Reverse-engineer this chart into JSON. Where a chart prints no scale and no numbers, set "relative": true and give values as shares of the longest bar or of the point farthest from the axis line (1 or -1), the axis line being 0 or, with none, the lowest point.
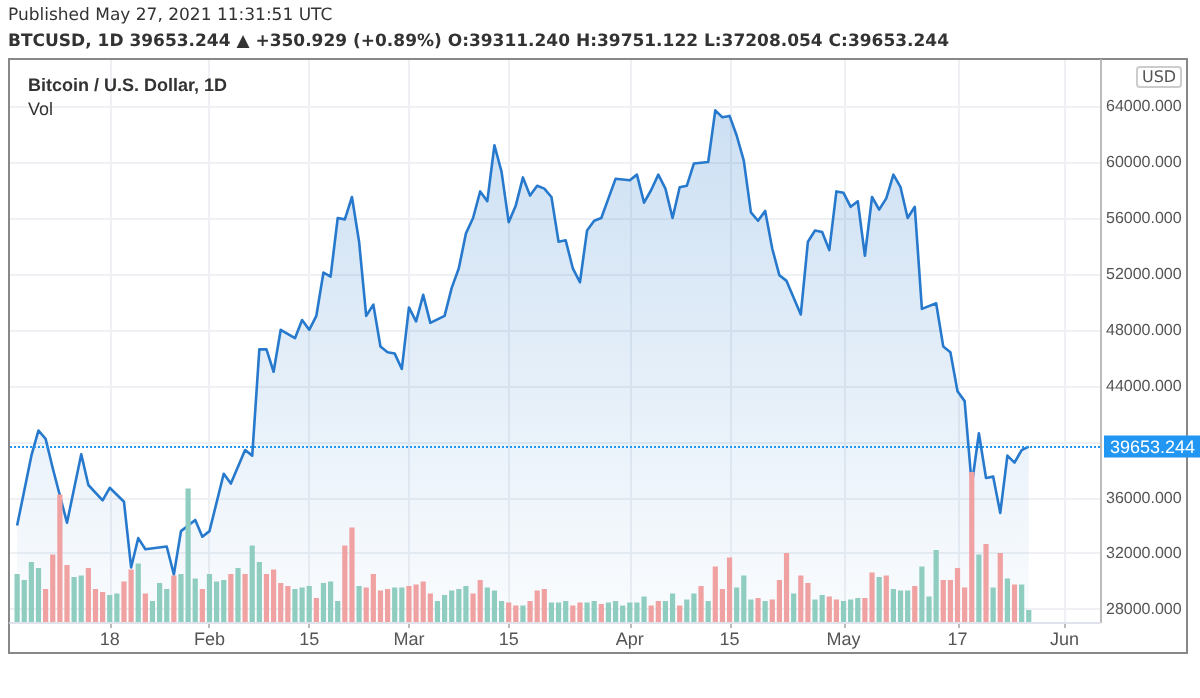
{
  "chart_data": [
    {
      "type": "area",
      "title": "Bitcoin / U.S. Dollar, 1D",
      "ylabel": "USD",
      "annotations": [
        "Published May 27, 2021 11:31:51 UTC",
        "BTCUSD, 1D 39653.244 ▲ +350.929 (+0.89%) O:39311.240 H:39751.122 L:37208.054 C:39653.244"
      ],
      "x": [
        "2021-01-05",
        "2021-01-07",
        "2021-01-08",
        "2021-01-09",
        "2021-01-10",
        "2021-01-12",
        "2021-01-14",
        "2021-01-15",
        "2021-01-17",
        "2021-01-18",
        "2021-01-20",
        "2021-01-21",
        "2021-01-22",
        "2021-01-23",
        "2021-01-26",
        "2021-01-27",
        "2021-01-28",
        "2021-01-30",
        "2021-01-31",
        "2021-02-01",
        "2021-02-03",
        "2021-02-04",
        "2021-02-06",
        "2021-02-07",
        "2021-02-08",
        "2021-02-09",
        "2021-02-10",
        "2021-02-11",
        "2021-02-13",
        "2021-02-14",
        "2021-02-15",
        "2021-02-16",
        "2021-02-17",
        "2021-02-18",
        "2021-02-19",
        "2021-02-20",
        "2021-02-21",
        "2021-02-22",
        "2021-02-23",
        "2021-02-24",
        "2021-02-25",
        "2021-02-26",
        "2021-02-27",
        "2021-02-28",
        "2021-03-01",
        "2021-03-02",
        "2021-03-03",
        "2021-03-04",
        "2021-03-06",
        "2021-03-07",
        "2021-03-08",
        "2021-03-09",
        "2021-03-10",
        "2021-03-11",
        "2021-03-12",
        "2021-03-13",
        "2021-03-14",
        "2021-03-15",
        "2021-03-16",
        "2021-03-17",
        "2021-03-18",
        "2021-03-19",
        "2021-03-20",
        "2021-03-21",
        "2021-03-22",
        "2021-03-23",
        "2021-03-24",
        "2021-03-25",
        "2021-03-26",
        "2021-03-27",
        "2021-03-28",
        "2021-03-29",
        "2021-03-30",
        "2021-04-01",
        "2021-04-02",
        "2021-04-03",
        "2021-04-04",
        "2021-04-05",
        "2021-04-06",
        "2021-04-07",
        "2021-04-08",
        "2021-04-09",
        "2021-04-10",
        "2021-04-12",
        "2021-04-13",
        "2021-04-14",
        "2021-04-15",
        "2021-04-16",
        "2021-04-17",
        "2021-04-18",
        "2021-04-19",
        "2021-04-20",
        "2021-04-21",
        "2021-04-22",
        "2021-04-23",
        "2021-04-25",
        "2021-04-26",
        "2021-04-27",
        "2021-04-28",
        "2021-04-29",
        "2021-04-30",
        "2021-05-01",
        "2021-05-02",
        "2021-05-03",
        "2021-05-04",
        "2021-05-05",
        "2021-05-06",
        "2021-05-07",
        "2021-05-08",
        "2021-05-09",
        "2021-05-10",
        "2021-05-11",
        "2021-05-12",
        "2021-05-14",
        "2021-05-15",
        "2021-05-16",
        "2021-05-17",
        "2021-05-18",
        "2021-05-19",
        "2021-05-20",
        "2021-05-21",
        "2021-05-22",
        "2021-05-23",
        "2021-05-24",
        "2021-05-25",
        "2021-05-26",
        "2021-05-27"
      ],
      "series": [
        {
          "color": "#2679cc",
          "values": [
            34000,
            39000,
            40800,
            40200,
            38100,
            34200,
            39100,
            36900,
            35800,
            36700,
            35700,
            31000,
            33100,
            32300,
            32500,
            30500,
            33600,
            34400,
            33200,
            33600,
            37700,
            37000,
            39400,
            39000,
            46600,
            46600,
            45000,
            48000,
            47400,
            48700,
            48000,
            49000,
            52100,
            51800,
            56000,
            55900,
            57500,
            54300,
            49000,
            49800,
            46800,
            46400,
            46300,
            45200,
            49600,
            48600,
            50500,
            48500,
            49000,
            51000,
            52400,
            54900,
            56000,
            57900,
            57200,
            61200,
            59300,
            55700,
            56900,
            58900,
            57600,
            58300,
            58100,
            57500,
            54300,
            54400,
            52400,
            51400,
            55100,
            55800,
            56000,
            57400,
            58800,
            58700,
            59100,
            57100,
            58000,
            59100,
            58100,
            56000,
            58200,
            58300,
            59900,
            60000,
            63700,
            63200,
            63300,
            61900,
            60100,
            56400,
            55800,
            56500,
            53800,
            51900,
            51500,
            49100,
            54300,
            55100,
            55000,
            53700,
            57900,
            57800,
            56800,
            57200,
            53300,
            57500,
            56600,
            57400,
            59100,
            58200,
            56000,
            56800,
            49500,
            49900,
            46800,
            46400,
            43600,
            42900,
            36900,
            40600,
            37400,
            37500,
            34900,
            39000,
            38500,
            39400,
            39650
          ]
        }
      ],
      "xlim": [
        "2021-01-04",
        "2021-06-06"
      ],
      "xticks": [
        {
          "value": "2021-01-18",
          "label": "18"
        },
        {
          "value": "2021-02-01",
          "label": "Feb"
        },
        {
          "value": "2021-02-15",
          "label": "15"
        },
        {
          "value": "2021-03-01",
          "label": "Mar"
        },
        {
          "value": "2021-03-15",
          "label": "15"
        },
        {
          "value": "2021-04-01",
          "label": "Apr"
        },
        {
          "value": "2021-04-15",
          "label": "15"
        },
        {
          "value": "2021-05-01",
          "label": "May"
        },
        {
          "value": "2021-05-17",
          "label": "17"
        },
        {
          "value": "2021-06-01",
          "label": "Jun"
        }
      ],
      "ylim": [
        27100,
        67300
      ],
      "yticks": [
        {
          "value": 28000,
          "label": "28000.000"
        },
        {
          "value": 32000,
          "label": "32000.000"
        },
        {
          "value": 36000,
          "label": "36000.000"
        },
        {
          "value": 40000,
          "label": null
        },
        {
          "value": 44000,
          "label": "44000.000"
        },
        {
          "value": 48000,
          "label": "48000.000"
        },
        {
          "value": 52000,
          "label": "52000.000"
        },
        {
          "value": 56000,
          "label": "56000.000"
        },
        {
          "value": 60000,
          "label": "60000.000"
        },
        {
          "value": 64000,
          "label": "64000.000"
        }
      ],
      "ref_lines": [
        {
          "axis": "y",
          "value": 39653.244,
          "label": "39653.244",
          "color": "#2196f3",
          "line_style": "dotted"
        }
      ],
      "grid": true,
      "marker": "none"
    },
    {
      "type": "bar",
      "title": "Vol",
      "relative": true,
      "x": [
        "2021-01-05",
        "2021-01-06",
        "2021-01-07",
        "2021-01-08",
        "2021-01-09",
        "2021-01-10",
        "2021-01-11",
        "2021-01-12",
        "2021-01-13",
        "2021-01-14",
        "2021-01-15",
        "2021-01-16",
        "2021-01-17",
        "2021-01-18",
        "2021-01-19",
        "2021-01-20",
        "2021-01-21",
        "2021-01-22",
        "2021-01-23",
        "2021-01-24",
        "2021-01-25",
        "2021-01-26",
        "2021-01-27",
        "2021-01-28",
        "2021-01-29",
        "2021-01-30",
        "2021-01-31",
        "2021-02-01",
        "2021-02-02",
        "2021-02-03",
        "2021-02-04",
        "2021-02-05",
        "2021-02-06",
        "2021-02-07",
        "2021-02-08",
        "2021-02-09",
        "2021-02-10",
        "2021-02-11",
        "2021-02-12",
        "2021-02-13",
        "2021-02-14",
        "2021-02-15",
        "2021-02-16",
        "2021-02-17",
        "2021-02-18",
        "2021-02-19",
        "2021-02-20",
        "2021-02-21",
        "2021-02-22",
        "2021-02-23",
        "2021-02-24",
        "2021-02-25",
        "2021-02-26",
        "2021-02-27",
        "2021-02-28",
        "2021-03-01",
        "2021-03-02",
        "2021-03-03",
        "2021-03-04",
        "2021-03-05",
        "2021-03-06",
        "2021-03-07",
        "2021-03-08",
        "2021-03-09",
        "2021-03-10",
        "2021-03-11",
        "2021-03-12",
        "2021-03-13",
        "2021-03-14",
        "2021-03-15",
        "2021-03-16",
        "2021-03-17",
        "2021-03-18",
        "2021-03-19",
        "2021-03-20",
        "2021-03-21",
        "2021-03-22",
        "2021-03-23",
        "2021-03-24",
        "2021-03-25",
        "2021-03-26",
        "2021-03-27",
        "2021-03-28",
        "2021-03-29",
        "2021-03-30",
        "2021-03-31",
        "2021-04-01",
        "2021-04-02",
        "2021-04-03",
        "2021-04-04",
        "2021-04-05",
        "2021-04-06",
        "2021-04-07",
        "2021-04-08",
        "2021-04-09",
        "2021-04-10",
        "2021-04-11",
        "2021-04-12",
        "2021-04-13",
        "2021-04-14",
        "2021-04-15",
        "2021-04-16",
        "2021-04-17",
        "2021-04-18",
        "2021-04-19",
        "2021-04-20",
        "2021-04-21",
        "2021-04-22",
        "2021-04-23",
        "2021-04-24",
        "2021-04-25",
        "2021-04-26",
        "2021-04-27",
        "2021-04-28",
        "2021-04-29",
        "2021-04-30",
        "2021-05-01",
        "2021-05-02",
        "2021-05-03",
        "2021-05-04",
        "2021-05-05",
        "2021-05-06",
        "2021-05-07",
        "2021-05-08",
        "2021-05-09",
        "2021-05-10",
        "2021-05-11",
        "2021-05-12",
        "2021-05-13",
        "2021-05-14",
        "2021-05-15",
        "2021-05-16",
        "2021-05-17",
        "2021-05-18",
        "2021-05-19",
        "2021-05-20",
        "2021-05-21",
        "2021-05-22",
        "2021-05-23",
        "2021-05-24",
        "2021-05-25",
        "2021-05-26",
        "2021-05-27"
      ],
      "xlim": [
        "2021-01-04",
        "2021-06-06"
      ],
      "values": [
        0.32,
        0.28,
        0.4,
        0.36,
        0.22,
        0.45,
        0.85,
        0.38,
        0.3,
        0.31,
        0.36,
        0.22,
        0.2,
        0.18,
        0.19,
        0.27,
        0.35,
        0.39,
        0.19,
        0.14,
        0.26,
        0.22,
        0.31,
        0.32,
        0.89,
        0.29,
        0.22,
        0.32,
        0.27,
        0.28,
        0.32,
        0.36,
        0.32,
        0.51,
        0.4,
        0.32,
        0.35,
        0.26,
        0.24,
        0.22,
        0.23,
        0.24,
        0.16,
        0.26,
        0.27,
        0.14,
        0.51,
        0.63,
        0.24,
        0.23,
        0.32,
        0.21,
        0.22,
        0.23,
        0.23,
        0.24,
        0.25,
        0.27,
        0.19,
        0.14,
        0.18,
        0.21,
        0.22,
        0.24,
        0.19,
        0.28,
        0.23,
        0.21,
        0.14,
        0.13,
        0.11,
        0.11,
        0.14,
        0.21,
        0.22,
        0.13,
        0.13,
        0.14,
        0.11,
        0.13,
        0.13,
        0.14,
        0.12,
        0.13,
        0.14,
        0.11,
        0.13,
        0.13,
        0.17,
        0.11,
        0.14,
        0.14,
        0.19,
        0.11,
        0.15,
        0.19,
        0.24,
        0.14,
        0.37,
        0.22,
        0.43,
        0.23,
        0.31,
        0.15,
        0.16,
        0.14,
        0.15,
        0.28,
        0.46,
        0.19,
        0.31,
        0.26,
        0.15,
        0.18,
        0.17,
        0.15,
        0.14,
        0.15,
        0.16,
        0.16,
        0.33,
        0.3,
        0.31,
        0.22,
        0.21,
        0.21,
        0.24,
        0.37,
        0.17,
        0.48,
        0.28,
        0.28,
        0.36,
        0.23,
        1,
        0.45,
        0.52,
        0.23,
        0.46,
        0.29,
        0.25,
        0.25,
        0.08
      ],
      "colors": [
        "#8fcdc0",
        "#8fcdc0",
        "#8fcdc0",
        "#8fcdc0",
        "#f0a1a1",
        "#f0a1a1",
        "#f0a1a1",
        "#f0a1a1",
        "#8fcdc0",
        "#8fcdc0",
        "#f0a1a1",
        "#f0a1a1",
        "#f0a1a1",
        "#8fcdc0",
        "#8fcdc0",
        "#f0a1a1",
        "#f0a1a1",
        "#8fcdc0",
        "#f0a1a1",
        "#8fcdc0",
        "#8fcdc0",
        "#8fcdc0",
        "#f0a1a1",
        "#8fcdc0",
        "#8fcdc0",
        "#8fcdc0",
        "#f0a1a1",
        "#8fcdc0",
        "#8fcdc0",
        "#8fcdc0",
        "#f0a1a1",
        "#8fcdc0",
        "#f0a1a1",
        "#8fcdc0",
        "#8fcdc0",
        "#f0a1a1",
        "#f0a1a1",
        "#f0a1a1",
        "#f0a1a1",
        "#8fcdc0",
        "#8fcdc0",
        "#8fcdc0",
        "#f0a1a1",
        "#8fcdc0",
        "#8fcdc0",
        "#8fcdc0",
        "#f0a1a1",
        "#f0a1a1",
        "#8fcdc0",
        "#f0a1a1",
        "#f0a1a1",
        "#f0a1a1",
        "#f0a1a1",
        "#8fcdc0",
        "#8fcdc0",
        "#f0a1a1",
        "#f0a1a1",
        "#f0a1a1",
        "#f0a1a1",
        "#8fcdc0",
        "#8fcdc0",
        "#8fcdc0",
        "#8fcdc0",
        "#8fcdc0",
        "#f0a1a1",
        "#f0a1a1",
        "#8fcdc0",
        "#8fcdc0",
        "#8fcdc0",
        "#f0a1a1",
        "#f0a1a1",
        "#8fcdc0",
        "#f0a1a1",
        "#f0a1a1",
        "#f0a1a1",
        "#8fcdc0",
        "#8fcdc0",
        "#8fcdc0",
        "#f0a1a1",
        "#f0a1a1",
        "#8fcdc0",
        "#8fcdc0",
        "#f0a1a1",
        "#8fcdc0",
        "#8fcdc0",
        "#8fcdc0",
        "#8fcdc0",
        "#8fcdc0",
        "#8fcdc0",
        "#f0a1a1",
        "#f0a1a1",
        "#8fcdc0",
        "#8fcdc0",
        "#f0a1a1",
        "#8fcdc0",
        "#8fcdc0",
        "#f0a1a1",
        "#8fcdc0",
        "#f0a1a1",
        "#f0a1a1",
        "#f0a1a1",
        "#8fcdc0",
        "#8fcdc0",
        "#8fcdc0",
        "#f0a1a1",
        "#8fcdc0",
        "#f0a1a1",
        "#f0a1a1",
        "#f0a1a1",
        "#8fcdc0",
        "#f0a1a1",
        "#f0a1a1",
        "#8fcdc0",
        "#8fcdc0",
        "#f0a1a1",
        "#f0a1a1",
        "#8fcdc0",
        "#8fcdc0",
        "#8fcdc0",
        "#f0a1a1",
        "#f0a1a1",
        "#8fcdc0",
        "#f0a1a1",
        "#8fcdc0",
        "#8fcdc0",
        "#8fcdc0",
        "#f0a1a1",
        "#8fcdc0",
        "#8fcdc0",
        "#8fcdc0",
        "#f0a1a1",
        "#f0a1a1",
        "#f0a1a1",
        "#f0a1a1",
        "#f0a1a1",
        "#8fcdc0",
        "#f0a1a1",
        "#8fcdc0",
        "#f0a1a1",
        "#8fcdc0",
        "#f0a1a1",
        "#8fcdc0",
        "#8fcdc0"
      ]
    }
  ]
}
